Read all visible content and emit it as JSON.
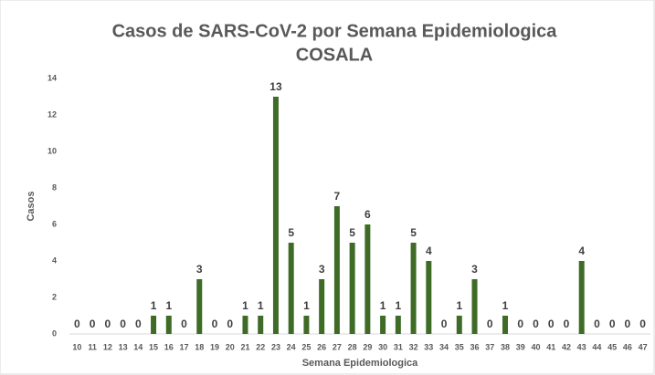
{
  "chart_data": {
    "type": "bar",
    "title": "Casos de SARS-CoV-2 por Semana Epidemiologica",
    "subtitle": "COSALA",
    "x_label": "Semana Epidemiologica",
    "y_label": "Casos",
    "categories": [
      "10",
      "11",
      "12",
      "13",
      "14",
      "15",
      "16",
      "17",
      "18",
      "19",
      "20",
      "21",
      "22",
      "23",
      "24",
      "25",
      "26",
      "27",
      "28",
      "29",
      "30",
      "31",
      "32",
      "33",
      "34",
      "35",
      "36",
      "37",
      "38",
      "39",
      "40",
      "41",
      "42",
      "43",
      "44",
      "45",
      "46",
      "47"
    ],
    "values": [
      0,
      0,
      0,
      0,
      0,
      1,
      1,
      0,
      3,
      0,
      0,
      1,
      1,
      13,
      5,
      1,
      3,
      7,
      5,
      6,
      1,
      1,
      5,
      4,
      0,
      1,
      3,
      0,
      1,
      0,
      0,
      0,
      0,
      4,
      0,
      0,
      0,
      0
    ],
    "color": "#3e6b26",
    "ylim": [
      0,
      14
    ],
    "yticks": [
      0,
      2,
      4,
      6,
      8,
      10,
      12,
      14
    ],
    "grid": false
  }
}
